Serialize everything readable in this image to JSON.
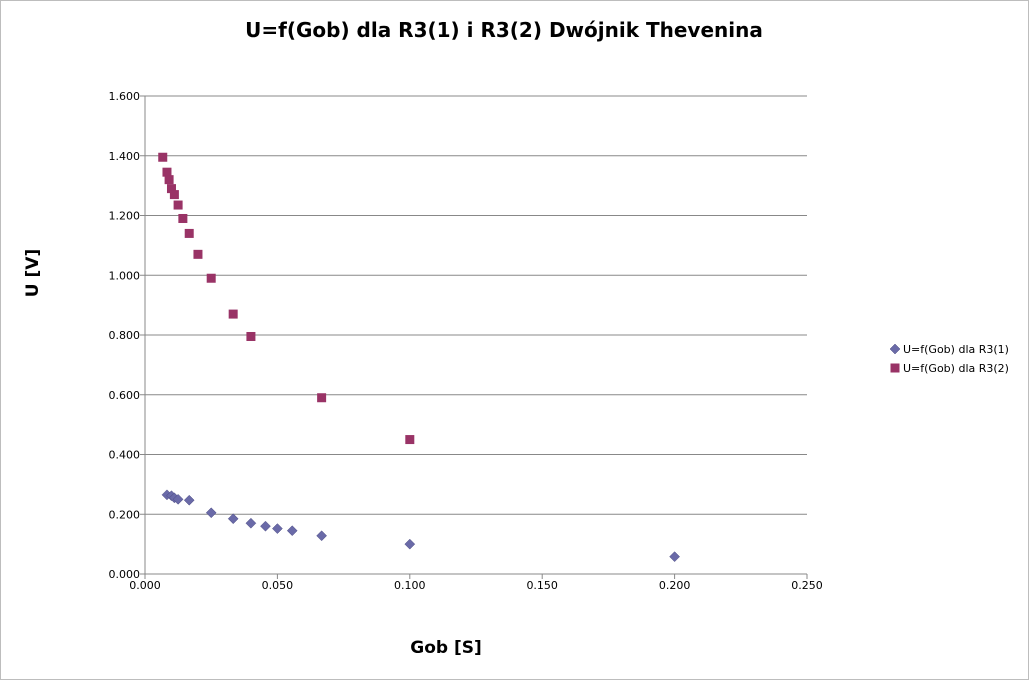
{
  "chart_data": {
    "type": "scatter",
    "title": "U=f(Gob) dla R3(1) i R3(2) Dwójnik Thevenina",
    "xlabel": "Gob [S]",
    "ylabel": "U [V]",
    "xlim": [
      0,
      0.25
    ],
    "ylim": [
      0,
      1.6
    ],
    "xticks": [
      "0.000",
      "0.050",
      "0.100",
      "0.150",
      "0.200",
      "0.250"
    ],
    "xtick_values": [
      0,
      0.05,
      0.1,
      0.15,
      0.2,
      0.25
    ],
    "yticks": [
      "0.000",
      "0.200",
      "0.400",
      "0.600",
      "0.800",
      "1.000",
      "1.200",
      "1.400",
      "1.600"
    ],
    "ytick_values": [
      0,
      0.2,
      0.4,
      0.6,
      0.8,
      1.0,
      1.2,
      1.4,
      1.6
    ],
    "grid": "horizontal",
    "legend_position": "right",
    "series": [
      {
        "name": "U=f(Gob) dla R3(1)",
        "marker": "diamond",
        "color": "#6a6aa8",
        "points": [
          [
            0.0083,
            0.265
          ],
          [
            0.01,
            0.262
          ],
          [
            0.0111,
            0.255
          ],
          [
            0.0125,
            0.25
          ],
          [
            0.0167,
            0.247
          ],
          [
            0.025,
            0.205
          ],
          [
            0.0333,
            0.185
          ],
          [
            0.04,
            0.17
          ],
          [
            0.0455,
            0.16
          ],
          [
            0.05,
            0.152
          ],
          [
            0.0556,
            0.145
          ],
          [
            0.0667,
            0.128
          ],
          [
            0.1,
            0.1
          ],
          [
            0.2,
            0.058
          ]
        ]
      },
      {
        "name": "U=f(Gob) dla R3(2)",
        "marker": "square",
        "color": "#993366",
        "points": [
          [
            0.0067,
            1.395
          ],
          [
            0.0083,
            1.345
          ],
          [
            0.0091,
            1.32
          ],
          [
            0.01,
            1.29
          ],
          [
            0.0111,
            1.27
          ],
          [
            0.0125,
            1.235
          ],
          [
            0.0143,
            1.19
          ],
          [
            0.0167,
            1.14
          ],
          [
            0.02,
            1.07
          ],
          [
            0.025,
            0.99
          ],
          [
            0.0333,
            0.87
          ],
          [
            0.04,
            0.795
          ],
          [
            0.0667,
            0.59
          ],
          [
            0.1,
            0.45
          ]
        ]
      }
    ]
  }
}
